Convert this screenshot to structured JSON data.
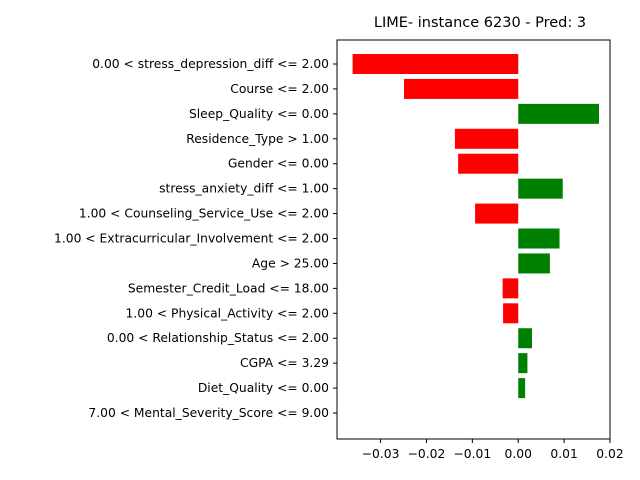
{
  "chart_data": {
    "type": "bar",
    "orientation": "horizontal",
    "title": "LIME- instance 6230 - Pred: 3",
    "xlabel": "",
    "ylabel": "",
    "xlim": [
      -0.0395,
      0.02
    ],
    "xticks": [
      -0.03,
      -0.02,
      -0.01,
      0.0,
      0.01,
      0.02
    ],
    "xtick_labels": [
      "−0.03",
      "−0.02",
      "−0.01",
      "0.00",
      "0.01",
      "0.02"
    ],
    "grid": false,
    "colors": {
      "positive": "#008000",
      "negative": "#ff0000"
    },
    "categories": [
      "0.00 < stress_depression_diff <= 2.00",
      "Course <= 2.00",
      "Sleep_Quality <= 0.00",
      "Residence_Type > 1.00",
      "Gender <= 0.00",
      "stress_anxiety_diff <= 1.00",
      "1.00 < Counseling_Service_Use <= 2.00",
      "1.00 < Extracurricular_Involvement <= 2.00",
      "Age > 25.00",
      "Semester_Credit_Load <= 18.00",
      "1.00 < Physical_Activity <= 2.00",
      "0.00 < Relationship_Status <= 2.00",
      "CGPA <= 3.29",
      "Diet_Quality <= 0.00",
      "7.00 < Mental_Severity_Score <= 9.00"
    ],
    "values": [
      -0.0361,
      -0.0249,
      0.0176,
      -0.0138,
      -0.0131,
      0.0097,
      -0.0094,
      0.009,
      0.0069,
      -0.0034,
      -0.0033,
      0.003,
      0.002,
      0.0015,
      0.0
    ]
  }
}
